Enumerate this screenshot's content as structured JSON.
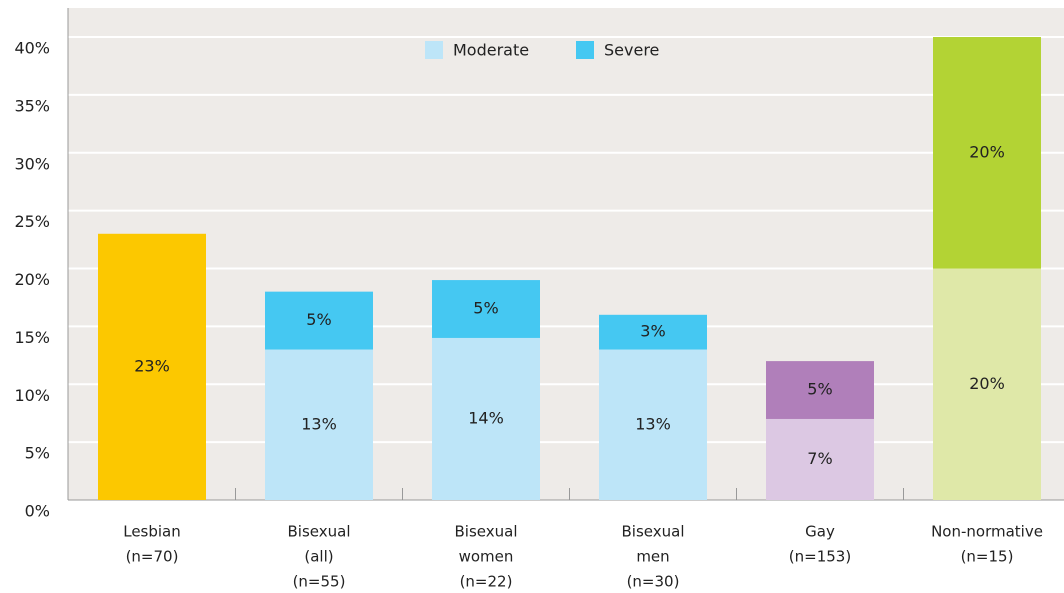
{
  "chart_data": {
    "type": "stacked_bar",
    "categories": [
      [
        "Lesbian",
        "(n=70)"
      ],
      [
        "Bisexual",
        "(all)",
        "(n=55)"
      ],
      [
        "Bisexual",
        "women",
        "(n=22)"
      ],
      [
        "Bisexual",
        "men",
        "(n=30)"
      ],
      [
        "Gay",
        "(n=153)"
      ],
      [
        "Non-normative",
        "(n=15)"
      ]
    ],
    "series": [
      {
        "color": "#fcc800",
        "bar_colors": [
          "#fcc800",
          null,
          null,
          null,
          null,
          null
        ],
        "values": [
          23,
          null,
          null,
          null,
          null,
          null
        ],
        "value_labels": [
          "23%",
          null,
          null,
          null,
          null,
          null
        ]
      },
      {
        "name": "Moderate",
        "color": "#bde5f8",
        "bar_colors": [
          null,
          "#bde5f8",
          "#bde5f8",
          "#bde5f8",
          "#dcc8e3",
          "#dfe8a8"
        ],
        "values": [
          null,
          13,
          14,
          13,
          7,
          20
        ],
        "value_labels": [
          null,
          "13%",
          "14%",
          "13%",
          "7%",
          "20%"
        ]
      },
      {
        "name": "Severe",
        "color": "#45c8f2",
        "bar_colors": [
          null,
          "#45c8f2",
          "#45c8f2",
          "#45c8f2",
          "#b07fba",
          "#b3d334"
        ],
        "values": [
          null,
          5,
          5,
          3,
          5,
          20
        ],
        "value_labels": [
          null,
          "5%",
          "5%",
          "3%",
          "5%",
          "20%"
        ]
      }
    ],
    "ylim": [
      0,
      40
    ],
    "yticks": [
      {
        "value": 0,
        "label": "0%"
      },
      {
        "value": 5,
        "label": "5%"
      },
      {
        "value": 10,
        "label": "10%"
      },
      {
        "value": 15,
        "label": "15%"
      },
      {
        "value": 20,
        "label": "20%"
      },
      {
        "value": 25,
        "label": "25%"
      },
      {
        "value": 30,
        "label": "30%"
      },
      {
        "value": 35,
        "label": "35%"
      },
      {
        "value": 40,
        "label": "40%"
      }
    ],
    "grid": true,
    "legend": "top"
  }
}
